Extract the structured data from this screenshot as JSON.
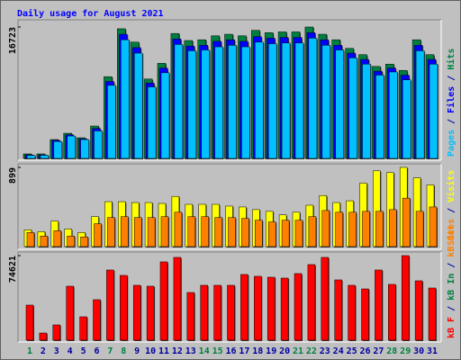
{
  "title": "Daily usage for August 2021",
  "legend_separator": " / ",
  "chart_data": [
    {
      "type": "bar",
      "series": [
        {
          "name": "Hits",
          "color": "#008040",
          "values": [
            573,
            573,
            2400,
            3200,
            2630,
            4120,
            10400,
            16500,
            14800,
            10100,
            12100,
            15900,
            15000,
            15100,
            15600,
            15800,
            15600,
            16300,
            16000,
            16100,
            16100,
            16723,
            15800,
            15100,
            14000,
            13200,
            11700,
            12000,
            11200,
            15100,
            13200
          ]
        },
        {
          "name": "Files",
          "color": "#0000ff",
          "values": [
            450,
            450,
            2300,
            3000,
            2500,
            3800,
            9800,
            15800,
            14100,
            9600,
            11500,
            15200,
            14300,
            14400,
            14900,
            15100,
            14900,
            15500,
            15300,
            15400,
            15400,
            16000,
            15100,
            14400,
            13400,
            12600,
            11100,
            11500,
            10600,
            14400,
            12600
          ]
        },
        {
          "name": "Pages",
          "color": "#00c0ff",
          "values": [
            380,
            400,
            2150,
            2850,
            2400,
            3500,
            9300,
            15100,
            13400,
            9100,
            10900,
            14500,
            13700,
            13800,
            14200,
            14400,
            14200,
            14800,
            14600,
            14700,
            14700,
            15300,
            14400,
            13800,
            12800,
            12000,
            10600,
            11000,
            10000,
            13700,
            12000
          ]
        }
      ],
      "ylim": [
        0,
        16723
      ],
      "yticks": [
        16723
      ]
    },
    {
      "type": "bar",
      "series": [
        {
          "name": "Visits",
          "color": "#ffff00",
          "values": [
            190,
            170,
            290,
            200,
            160,
            340,
            510,
            510,
            500,
            500,
            490,
            570,
            480,
            480,
            480,
            460,
            450,
            420,
            400,
            360,
            390,
            470,
            580,
            500,
            520,
            720,
            860,
            840,
            899,
            780,
            700
          ]
        },
        {
          "name": "Sites",
          "color": "#ff8000",
          "values": [
            160,
            120,
            180,
            120,
            110,
            260,
            330,
            340,
            330,
            330,
            340,
            390,
            340,
            340,
            330,
            330,
            320,
            300,
            280,
            300,
            300,
            340,
            410,
            390,
            390,
            400,
            400,
            420,
            550,
            400,
            450
          ]
        }
      ],
      "ylim": [
        0,
        899
      ],
      "yticks": [
        899
      ]
    },
    {
      "type": "bar",
      "series": [
        {
          "name": "kB F",
          "color": "#ff0000",
          "values": [
            30970,
            6350,
            13500,
            47640,
            20640,
            35730,
            61930,
            57170,
            48430,
            47640,
            69080,
            73050,
            42080,
            48430,
            48430,
            48430,
            57960,
            56370,
            55580,
            54790,
            58760,
            66700,
            73050,
            53200,
            48430,
            45260,
            61930,
            49230,
            74621,
            52400,
            46050
          ]
        }
      ],
      "extra_legend": [
        {
          "name": "kB In",
          "color": "#008040"
        },
        {
          "name": "kB Out",
          "color": "#ff8000"
        }
      ],
      "ylim": [
        0,
        74621
      ],
      "yticks": [
        74621
      ],
      "categories": [
        "1",
        "2",
        "3",
        "4",
        "5",
        "6",
        "7",
        "8",
        "9",
        "10",
        "11",
        "12",
        "13",
        "14",
        "15",
        "16",
        "17",
        "18",
        "19",
        "20",
        "21",
        "22",
        "23",
        "24",
        "25",
        "26",
        "27",
        "28",
        "29",
        "30",
        "31"
      ],
      "category_colors": [
        "#008040",
        "#0000a0",
        "#0000a0",
        "#0000a0",
        "#0000a0",
        "#0000a0",
        "#008040",
        "#008040",
        "#0000a0",
        "#0000a0",
        "#0000a0",
        "#0000a0",
        "#0000a0",
        "#008040",
        "#008040",
        "#0000a0",
        "#0000a0",
        "#0000a0",
        "#0000a0",
        "#0000a0",
        "#008040",
        "#008040",
        "#0000a0",
        "#0000a0",
        "#0000a0",
        "#0000a0",
        "#0000a0",
        "#008040",
        "#008040",
        "#0000a0",
        "#0000a0"
      ]
    }
  ]
}
